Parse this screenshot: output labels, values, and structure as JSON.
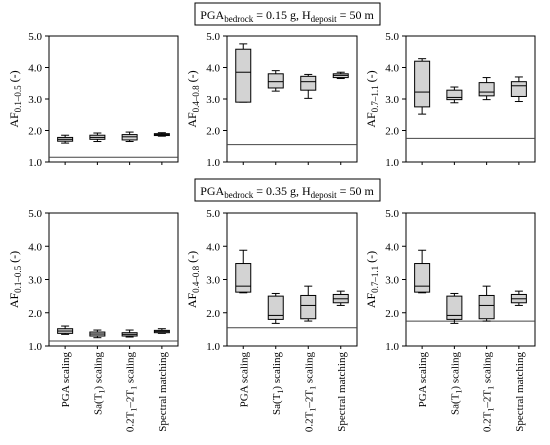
{
  "chart_data": [
    {
      "type": "box",
      "group": "top",
      "banner": {
        "pre": "PGA",
        "pre_sub": "bedrock",
        "mid": " = 0.15 g, H",
        "mid_sub": "deposit",
        "post": " = 50 m"
      },
      "ylabel": {
        "base": "AF",
        "sub": "0.1–0.5",
        "suffix": " (-)"
      },
      "ylim": [
        1.0,
        5.0
      ],
      "yticks": [
        "1.0",
        "2.0",
        "3.0",
        "4.0",
        "5.0"
      ],
      "categories": [
        "PGA scaling",
        "Sa(T1) scaling",
        "0.2T1–2T1 scaling",
        "Spectral matching"
      ],
      "reference_line": 1.15,
      "boxes": [
        {
          "min": 1.6,
          "q1": 1.66,
          "median": 1.72,
          "q3": 1.78,
          "max": 1.85
        },
        {
          "min": 1.65,
          "q1": 1.72,
          "median": 1.78,
          "q3": 1.85,
          "max": 1.92
        },
        {
          "min": 1.65,
          "q1": 1.7,
          "median": 1.8,
          "q3": 1.87,
          "max": 1.95
        },
        {
          "min": 1.82,
          "q1": 1.84,
          "median": 1.87,
          "q3": 1.9,
          "max": 1.93
        }
      ]
    },
    {
      "type": "box",
      "group": "top",
      "ylabel": {
        "base": "AF",
        "sub": "0.4–0.8",
        "suffix": " (-)"
      },
      "ylim": [
        1.0,
        5.0
      ],
      "yticks": [
        "1.0",
        "2.0",
        "3.0",
        "4.0",
        "5.0"
      ],
      "categories": [
        "PGA scaling",
        "Sa(T1) scaling",
        "0.2T1–2T1 scaling",
        "Spectral matching"
      ],
      "reference_line": 1.55,
      "boxes": [
        {
          "min": 2.9,
          "q1": 2.9,
          "median": 3.85,
          "q3": 4.58,
          "max": 4.75
        },
        {
          "min": 3.25,
          "q1": 3.35,
          "median": 3.55,
          "q3": 3.8,
          "max": 3.9
        },
        {
          "min": 3.02,
          "q1": 3.28,
          "median": 3.55,
          "q3": 3.72,
          "max": 3.78
        },
        {
          "min": 3.65,
          "q1": 3.68,
          "median": 3.75,
          "q3": 3.8,
          "max": 3.85
        }
      ]
    },
    {
      "type": "box",
      "group": "top",
      "ylabel": {
        "base": "AF",
        "sub": "0.7–1.1",
        "suffix": " (-)"
      },
      "ylim": [
        1.0,
        5.0
      ],
      "yticks": [
        "1.0",
        "2.0",
        "3.0",
        "4.0",
        "5.0"
      ],
      "categories": [
        "PGA scaling",
        "Sa(T1) scaling",
        "0.2T1–2T1 scaling",
        "Spectral matching"
      ],
      "reference_line": 1.75,
      "boxes": [
        {
          "min": 2.52,
          "q1": 2.75,
          "median": 3.22,
          "q3": 4.2,
          "max": 4.28
        },
        {
          "min": 2.88,
          "q1": 2.98,
          "median": 3.05,
          "q3": 3.28,
          "max": 3.38
        },
        {
          "min": 2.98,
          "q1": 3.1,
          "median": 3.22,
          "q3": 3.52,
          "max": 3.68
        },
        {
          "min": 2.92,
          "q1": 3.08,
          "median": 3.42,
          "q3": 3.55,
          "max": 3.7
        }
      ]
    },
    {
      "type": "box",
      "group": "bottom",
      "banner": {
        "pre": "PGA",
        "pre_sub": "bedrock",
        "mid": " = 0.35 g, H",
        "mid_sub": "deposit",
        "post": " = 50 m"
      },
      "ylabel": {
        "base": "AF",
        "sub": "0.1–0.5",
        "suffix": " (-)"
      },
      "ylim": [
        1.0,
        5.0
      ],
      "yticks": [
        "1.0",
        "2.0",
        "3.0",
        "4.0",
        "5.0"
      ],
      "categories": [
        "PGA scaling",
        "Sa(T1) scaling",
        "0.2T1–2T1 scaling",
        "Spectral matching"
      ],
      "reference_line": 1.15,
      "boxes": [
        {
          "min": 1.35,
          "q1": 1.38,
          "median": 1.45,
          "q3": 1.52,
          "max": 1.6
        },
        {
          "min": 1.25,
          "q1": 1.3,
          "median": 1.36,
          "q3": 1.42,
          "max": 1.48
        },
        {
          "min": 1.27,
          "q1": 1.3,
          "median": 1.35,
          "q3": 1.4,
          "max": 1.48
        },
        {
          "min": 1.38,
          "q1": 1.4,
          "median": 1.44,
          "q3": 1.47,
          "max": 1.52
        }
      ]
    },
    {
      "type": "box",
      "group": "bottom",
      "ylabel": {
        "base": "AF",
        "sub": "0.4–0.8",
        "suffix": " (-)"
      },
      "ylim": [
        1.0,
        5.0
      ],
      "yticks": [
        "1.0",
        "2.0",
        "3.0",
        "4.0",
        "5.0"
      ],
      "categories": [
        "PGA scaling",
        "Sa(T1) scaling",
        "0.2T1–2T1 scaling",
        "Spectral matching"
      ],
      "reference_line": 1.55,
      "boxes": [
        {
          "min": 2.6,
          "q1": 2.62,
          "median": 2.8,
          "q3": 3.48,
          "max": 3.88
        },
        {
          "min": 1.68,
          "q1": 1.8,
          "median": 1.92,
          "q3": 2.5,
          "max": 2.58
        },
        {
          "min": 1.75,
          "q1": 1.82,
          "median": 2.22,
          "q3": 2.52,
          "max": 2.8
        },
        {
          "min": 2.22,
          "q1": 2.3,
          "median": 2.42,
          "q3": 2.55,
          "max": 2.65
        }
      ]
    },
    {
      "type": "box",
      "group": "bottom",
      "ylabel": {
        "base": "AF",
        "sub": "0.7–1.1",
        "suffix": " (-)"
      },
      "ylim": [
        1.0,
        5.0
      ],
      "yticks": [
        "1.0",
        "2.0",
        "3.0",
        "4.0",
        "5.0"
      ],
      "categories": [
        "PGA scaling",
        "Sa(T1) scaling",
        "0.2T1–2T1 scaling",
        "Spectral matching"
      ],
      "reference_line": 1.75,
      "boxes": [
        {
          "min": 2.6,
          "q1": 2.62,
          "median": 2.8,
          "q3": 3.48,
          "max": 3.88
        },
        {
          "min": 1.68,
          "q1": 1.8,
          "median": 1.92,
          "q3": 2.5,
          "max": 2.58
        },
        {
          "min": 1.75,
          "q1": 1.82,
          "median": 2.22,
          "q3": 2.52,
          "max": 2.8
        },
        {
          "min": 2.22,
          "q1": 2.3,
          "median": 2.42,
          "q3": 2.55,
          "max": 2.65
        }
      ]
    }
  ],
  "x_tick_labels": [
    {
      "text": "PGA scaling"
    },
    {
      "text": "Sa(T",
      "sub": "1",
      "post": ") scaling"
    },
    {
      "text": "0.2T",
      "sub": "1",
      "mid": "–2T",
      "sub2": "1",
      "post": " scaling"
    },
    {
      "text": "Spectral matching"
    }
  ],
  "colors": {
    "box_fill": "#d3d3d3",
    "stroke": "#000000",
    "reference_line": "#444444",
    "background": "#ffffff"
  }
}
